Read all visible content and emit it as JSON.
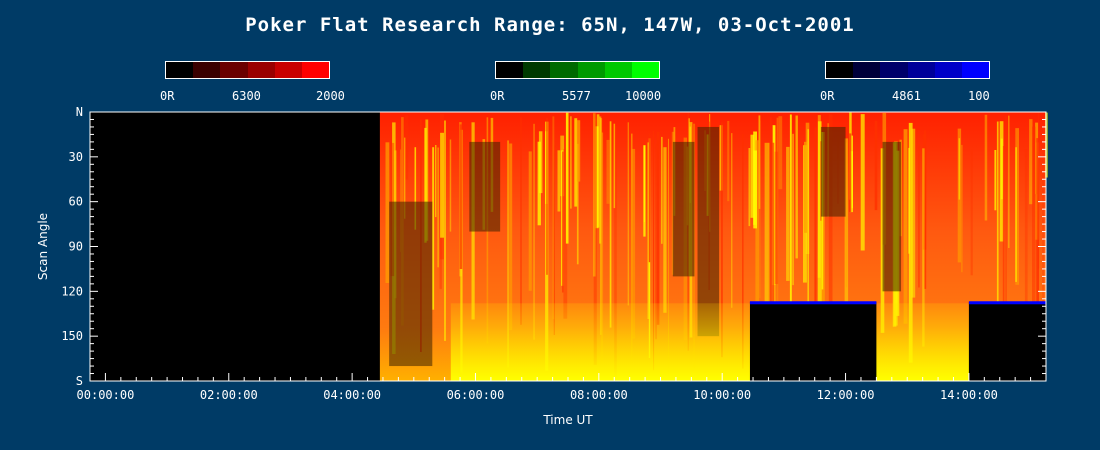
{
  "header": {
    "title": "Poker Flat Research Range: 65N, 147W, 03-Oct-2001"
  },
  "colorbars": [
    {
      "name": "red",
      "min_label": "0R",
      "wavelength": "6300",
      "max_label": "2000",
      "colors": [
        "#000000",
        "#3a0000",
        "#6a0000",
        "#9a0000",
        "#c80000",
        "#ff0000"
      ]
    },
    {
      "name": "green",
      "min_label": "0R",
      "wavelength": "5577",
      "max_label": "10000",
      "colors": [
        "#000000",
        "#003a00",
        "#006a00",
        "#009a00",
        "#00c800",
        "#00ff00"
      ]
    },
    {
      "name": "blue",
      "min_label": "0R",
      "wavelength": "4861",
      "max_label": "100",
      "colors": [
        "#000000",
        "#00003a",
        "#00006a",
        "#00009a",
        "#0000c8",
        "#0000ff"
      ]
    }
  ],
  "chart_data": {
    "type": "heatmap",
    "title": "Poker Flat Research Range: 65N, 147W, 03-Oct-2001",
    "xlabel": "Time UT",
    "ylabel": "Scan Angle",
    "x_ticks": [
      "00:00:00",
      "02:00:00",
      "04:00:00",
      "06:00:00",
      "08:00:00",
      "10:00:00",
      "12:00:00",
      "14:00:00"
    ],
    "x_range_hours": [
      -0.25,
      15.25
    ],
    "y_ticks": [
      "N",
      "30",
      "60",
      "90",
      "120",
      "150",
      "S"
    ],
    "y_tick_values": [
      0,
      30,
      60,
      90,
      120,
      150,
      180
    ],
    "y_range": [
      0,
      180
    ],
    "data_start_hours": 4.45,
    "masked_regions": [
      {
        "start_hours": 10.45,
        "end_hours": 12.5,
        "from_angle": 127
      },
      {
        "start_hours": 14.0,
        "end_hours": 15.25,
        "from_angle": 127
      }
    ],
    "colors": {
      "background": "#000000",
      "fill": "#ff2a00",
      "bright": "#ffff00",
      "dark": "#3a2000",
      "mask_edge": "#0000ff"
    }
  }
}
